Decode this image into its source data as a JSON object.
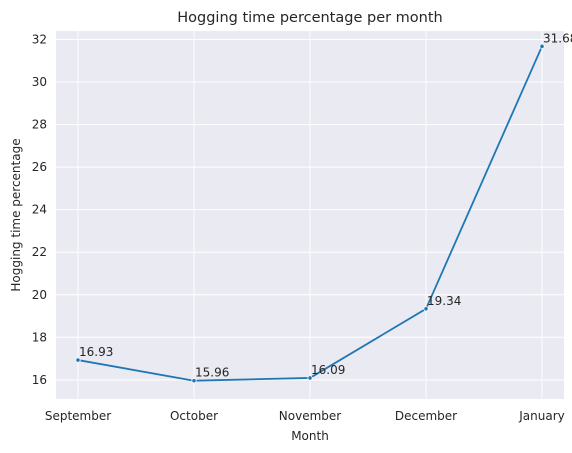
{
  "chart_data": {
    "type": "line",
    "title": "Hogging time percentage per month",
    "xlabel": "Month",
    "ylabel": "Hogging time percentage",
    "categories": [
      "September",
      "October",
      "November",
      "December",
      "January"
    ],
    "series": [
      {
        "values": [
          16.93,
          15.96,
          16.09,
          19.34,
          31.68
        ]
      }
    ],
    "data_labels": [
      "16.93",
      "15.96",
      "16.09",
      "19.34",
      "31.68"
    ],
    "ylim": [
      15.1,
      32.4
    ],
    "yticks": [
      16,
      18,
      20,
      22,
      24,
      26,
      28,
      30,
      32
    ],
    "grid": true,
    "colors": {
      "line": "#1f77b4",
      "background": "#eaeaf2",
      "grid": "#ffffff"
    }
  }
}
